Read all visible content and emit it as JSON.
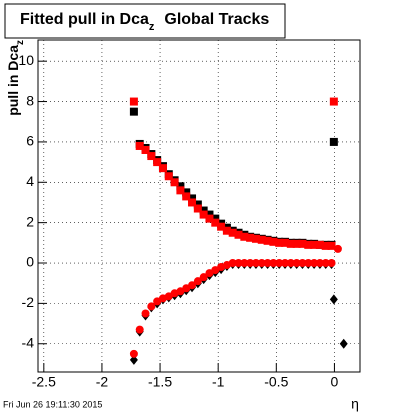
{
  "chart_data": {
    "type": "scatter",
    "title": "Fitted pull in Dca",
    "title_subscript": "z",
    "title_suffix": "Global Tracks",
    "ylabel": "pull in Dca",
    "ylabel_subscript": "z",
    "xlabel": "η",
    "footer": "Fri Jun 26 19:11:30 2015",
    "xlim": [
      -2.55,
      0.22
    ],
    "ylim": [
      -5.4,
      11.05
    ],
    "xticks": [
      -2.5,
      -2,
      -1.5,
      -1,
      -0.5,
      0
    ],
    "yticks": [
      -4,
      -2,
      0,
      2,
      4,
      6,
      8,
      10
    ],
    "grid": true,
    "series": [
      {
        "name": "Black upper",
        "color": "#000000",
        "marker": "square",
        "x": [
          -1.725,
          -1.675,
          -1.625,
          -1.575,
          -1.525,
          -1.475,
          -1.425,
          -1.375,
          -1.325,
          -1.275,
          -1.225,
          -1.175,
          -1.125,
          -1.075,
          -1.025,
          -0.975,
          -0.925,
          -0.875,
          -0.825,
          -0.775,
          -0.725,
          -0.675,
          -0.625,
          -0.575,
          -0.525,
          -0.475,
          -0.425,
          -0.375,
          -0.325,
          -0.275,
          -0.225,
          -0.175,
          -0.125,
          -0.075,
          -0.025,
          -0.005
        ],
        "values": [
          7.5,
          5.9,
          5.7,
          5.4,
          5.1,
          4.8,
          4.4,
          4.1,
          3.8,
          3.5,
          3.2,
          2.9,
          2.6,
          2.4,
          2.2,
          1.95,
          1.75,
          1.6,
          1.5,
          1.4,
          1.3,
          1.25,
          1.2,
          1.15,
          1.1,
          1.05,
          1.05,
          1.0,
          1.0,
          1.0,
          0.95,
          0.95,
          0.9,
          0.9,
          0.9,
          6.0
        ]
      },
      {
        "name": "Red upper",
        "color": "#ff0000",
        "marker": "square",
        "x": [
          -1.725,
          -1.675,
          -1.625,
          -1.575,
          -1.525,
          -1.475,
          -1.425,
          -1.375,
          -1.325,
          -1.275,
          -1.225,
          -1.175,
          -1.125,
          -1.075,
          -1.025,
          -0.975,
          -0.925,
          -0.875,
          -0.825,
          -0.775,
          -0.725,
          -0.675,
          -0.625,
          -0.575,
          -0.525,
          -0.475,
          -0.425,
          -0.375,
          -0.325,
          -0.275,
          -0.225,
          -0.175,
          -0.125,
          -0.075,
          -0.025,
          -0.005
        ],
        "values": [
          8.0,
          5.8,
          5.6,
          5.3,
          5.0,
          4.7,
          4.3,
          4.0,
          3.6,
          3.3,
          3.0,
          2.7,
          2.4,
          2.2,
          2.0,
          1.8,
          1.6,
          1.5,
          1.4,
          1.3,
          1.25,
          1.2,
          1.15,
          1.1,
          1.05,
          1.0,
          1.0,
          0.95,
          0.95,
          0.95,
          0.9,
          0.9,
          0.9,
          0.85,
          0.85,
          8.0
        ]
      },
      {
        "name": "Black lower",
        "color": "#000000",
        "marker": "diamond",
        "x": [
          -1.725,
          -1.675,
          -1.625,
          -1.575,
          -1.525,
          -1.475,
          -1.425,
          -1.375,
          -1.325,
          -1.275,
          -1.225,
          -1.175,
          -1.125,
          -1.075,
          -1.025,
          -0.975,
          -0.925,
          -0.875,
          -0.825,
          -0.775,
          -0.725,
          -0.675,
          -0.625,
          -0.575,
          -0.525,
          -0.475,
          -0.425,
          -0.375,
          -0.325,
          -0.275,
          -0.225,
          -0.175,
          -0.125,
          -0.075,
          -0.025,
          -0.005,
          0.08
        ],
        "values": [
          -4.8,
          -3.4,
          -2.6,
          -2.2,
          -2.0,
          -1.8,
          -1.7,
          -1.6,
          -1.5,
          -1.35,
          -1.2,
          -1.0,
          -0.8,
          -0.6,
          -0.45,
          -0.3,
          -0.15,
          -0.05,
          -0.05,
          -0.05,
          -0.05,
          -0.05,
          -0.05,
          -0.05,
          -0.05,
          -0.05,
          -0.05,
          -0.05,
          -0.05,
          -0.05,
          -0.05,
          -0.05,
          -0.05,
          -0.05,
          -0.05,
          -1.8,
          -4.0
        ]
      },
      {
        "name": "Red lower",
        "color": "#ff0000",
        "marker": "circle",
        "x": [
          -1.725,
          -1.675,
          -1.625,
          -1.575,
          -1.525,
          -1.475,
          -1.425,
          -1.375,
          -1.325,
          -1.275,
          -1.225,
          -1.175,
          -1.125,
          -1.075,
          -1.025,
          -0.975,
          -0.925,
          -0.875,
          -0.825,
          -0.775,
          -0.725,
          -0.675,
          -0.625,
          -0.575,
          -0.525,
          -0.475,
          -0.425,
          -0.375,
          -0.325,
          -0.275,
          -0.225,
          -0.175,
          -0.125,
          -0.075,
          -0.025,
          0.03
        ],
        "values": [
          -4.5,
          -3.3,
          -2.5,
          -2.15,
          -1.9,
          -1.75,
          -1.65,
          -1.5,
          -1.4,
          -1.25,
          -1.1,
          -0.9,
          -0.7,
          -0.5,
          -0.35,
          -0.2,
          -0.1,
          0,
          0,
          0,
          0,
          0,
          0,
          0,
          0,
          0,
          0,
          0,
          0,
          0,
          0,
          0,
          0,
          0,
          0,
          0.7
        ]
      }
    ]
  }
}
